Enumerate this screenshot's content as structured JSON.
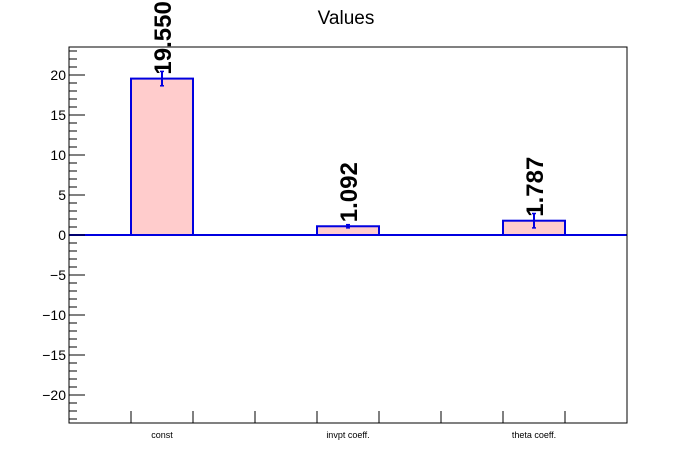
{
  "chart_data": {
    "type": "bar",
    "title": "Values",
    "xlabel": "",
    "ylabel": "",
    "categories": [
      "const",
      "invpt coeff.",
      "theta coeff."
    ],
    "values": [
      19.55,
      1.092,
      1.787
    ],
    "errors": [
      0.9,
      0.2,
      0.9
    ],
    "data_labels": [
      "19.550",
      "1.092",
      "1.787"
    ],
    "ylim": [
      -23.5,
      23.5
    ],
    "y_ticks": [
      -20,
      -15,
      -10,
      -5,
      0,
      5,
      10,
      15,
      20
    ],
    "y_tick_labels": [
      "−20",
      "−15",
      "−10",
      "−5",
      "0",
      "5",
      "10",
      "15",
      "20"
    ],
    "grid": false,
    "colors": {
      "bar_fill": "#ffcccc",
      "bar_edge": "#0000e0",
      "zero_line": "#0000e0",
      "frame": "#000000"
    }
  }
}
